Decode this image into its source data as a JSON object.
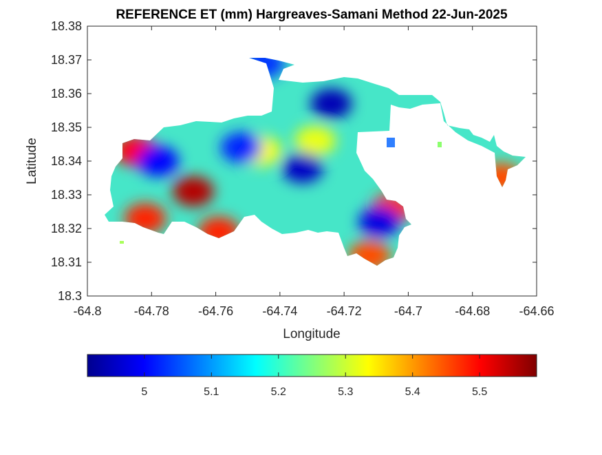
{
  "title": "REFERENCE ET (mm) Hargreaves-Samani Method  22-Jun-2025",
  "xlabel": "Longitude",
  "ylabel": "Latitude",
  "x_ticks": [
    "-64.8",
    "-64.78",
    "-64.76",
    "-64.74",
    "-64.72",
    "-64.7",
    "-64.68",
    "-64.66"
  ],
  "y_ticks": [
    "18.3",
    "18.31",
    "18.32",
    "18.33",
    "18.34",
    "18.35",
    "18.36",
    "18.37",
    "18.38"
  ],
  "colorbar_ticks": [
    "5",
    "5.1",
    "5.2",
    "5.3",
    "5.4",
    "5.5"
  ],
  "chart_data": {
    "type": "heatmap",
    "title": "REFERENCE ET (mm) Hargreaves-Samani Method  22-Jun-2025",
    "xlabel": "Longitude",
    "ylabel": "Latitude",
    "xlim": [
      -64.8,
      -64.66
    ],
    "ylim": [
      18.3,
      18.38
    ],
    "colormap": "jet",
    "colorbar_range": [
      4.915,
      5.585
    ],
    "colorbar_ticks": [
      5,
      5.1,
      5.2,
      5.3,
      5.4,
      5.5
    ],
    "legend_placement": "bottom",
    "grid": false,
    "hotspots": [
      {
        "lon": -64.767,
        "lat": 18.331,
        "value": 5.55
      },
      {
        "lon": -64.785,
        "lat": 18.343,
        "value": 5.5
      },
      {
        "lon": -64.782,
        "lat": 18.323,
        "value": 5.48
      },
      {
        "lon": -64.759,
        "lat": 18.319,
        "value": 5.48
      },
      {
        "lon": -64.705,
        "lat": 18.326,
        "value": 5.47
      },
      {
        "lon": -64.712,
        "lat": 18.312,
        "value": 5.45
      },
      {
        "lon": -64.671,
        "lat": 18.335,
        "value": 5.45
      },
      {
        "lon": -64.746,
        "lat": 18.343,
        "value": 5.33
      },
      {
        "lon": -64.729,
        "lat": 18.346,
        "value": 5.32
      },
      {
        "lon": -64.724,
        "lat": 18.357,
        "value": 4.95
      },
      {
        "lon": -64.733,
        "lat": 18.338,
        "value": 4.96
      },
      {
        "lon": -64.709,
        "lat": 18.322,
        "value": 4.98
      },
      {
        "lon": -64.778,
        "lat": 18.34,
        "value": 5.0
      },
      {
        "lon": -64.752,
        "lat": 18.344,
        "value": 5.02
      },
      {
        "lon": -64.745,
        "lat": 18.369,
        "value": 5.03
      }
    ]
  }
}
